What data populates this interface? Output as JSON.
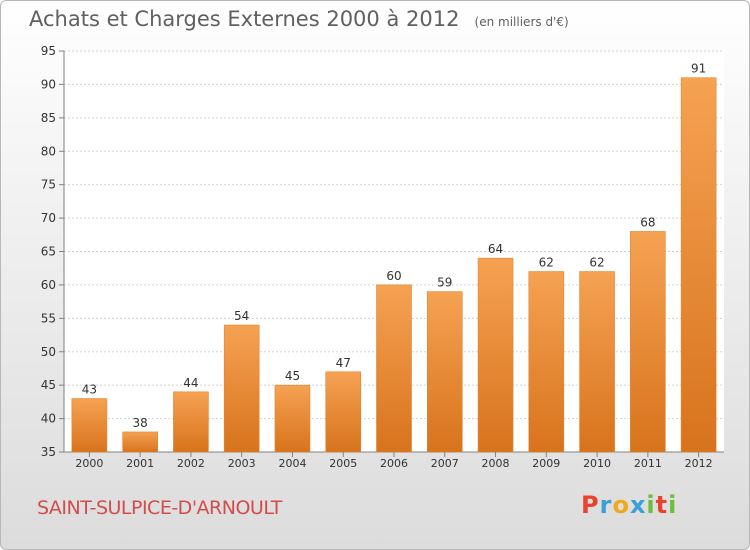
{
  "header": {
    "title": "Achats et Charges Externes 2000 à 2012",
    "unit": "(en milliers d'€)"
  },
  "footer": {
    "commune": "SAINT-SULPICE-D'ARNOULT",
    "logo": {
      "text": "Proxiti",
      "letters": [
        "P",
        "r",
        "o",
        "x",
        "i",
        "t",
        "i"
      ],
      "colors": [
        "#e8432d",
        "#3aa0d8",
        "#f0a81c",
        "#3aa0d8",
        "#6cbf3a",
        "#e8432d",
        "#6cbf3a"
      ]
    }
  },
  "chart_data": {
    "type": "bar",
    "title": "Achats et Charges Externes 2000 à 2012",
    "subtitle": "(en milliers d'€)",
    "categories": [
      "2000",
      "2001",
      "2002",
      "2003",
      "2004",
      "2005",
      "2006",
      "2007",
      "2008",
      "2009",
      "2010",
      "2011",
      "2012"
    ],
    "values": [
      43,
      38,
      44,
      54,
      45,
      47,
      60,
      59,
      64,
      62,
      62,
      68,
      91
    ],
    "ylim": [
      35,
      95
    ],
    "yticks": [
      35,
      40,
      45,
      50,
      55,
      60,
      65,
      70,
      75,
      80,
      85,
      90,
      95
    ],
    "grid": true,
    "data_labels": true,
    "colors": {
      "bar_top": "#f5a253",
      "bar_bottom": "#d8731c",
      "bar_edge": "#e08630",
      "grid": "#d2d2d2",
      "axis": "#808080",
      "text": "#333333"
    }
  }
}
